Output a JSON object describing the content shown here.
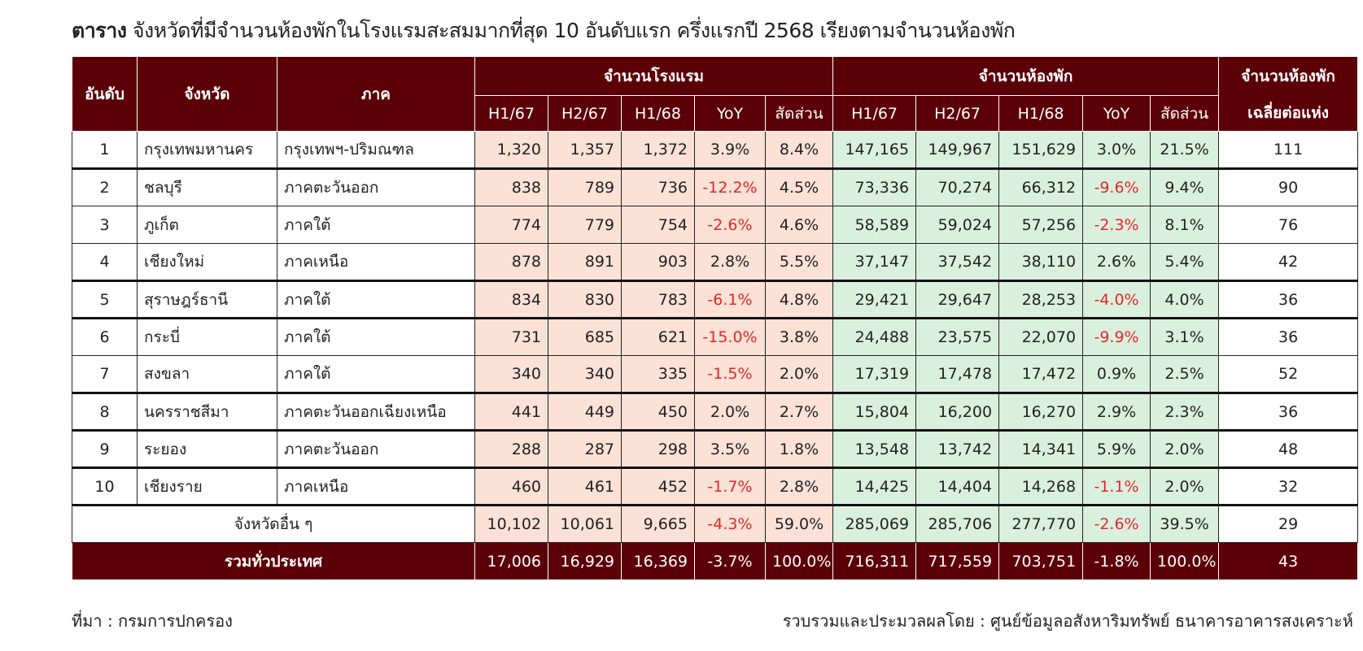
{
  "title": {
    "prefix": "ตาราง",
    "text": "จังหวัดที่มีจำนวนห้องพักในโรงแรมสะสมมากที่สุด 10 อันดับแรก ครึ่งแรกปี 2568 เรียงตามจำนวนห้องพัก"
  },
  "colors": {
    "header": "#5c0008",
    "hotel_cells": "#fbe1d6",
    "room_cells": "#daf0de",
    "negative": "#e02828"
  },
  "headers": {
    "rank": "อันดับ",
    "province": "จังหวัด",
    "region": "ภาค",
    "hotels_group": "จำนวนโรงแรม",
    "rooms_group": "จำนวนห้องพัก",
    "avg_line1": "จำนวนห้องพัก",
    "avg_line2": "เฉลี่ยต่อแห่ง",
    "sub": [
      "H1/67",
      "H2/67",
      "H1/68",
      "YoY",
      "สัดส่วน"
    ]
  },
  "rows": [
    {
      "rank": "1",
      "province": "กรุงเทพมหานคร",
      "region": "กรุงเทพฯ-ปริมณฑล",
      "hotels": [
        "1,320",
        "1,357",
        "1,372",
        "3.9%",
        "8.4%"
      ],
      "rooms": [
        "147,165",
        "149,967",
        "151,629",
        "3.0%",
        "21.5%"
      ],
      "avg": "111"
    },
    {
      "rank": "2",
      "province": "ชลบุรี",
      "region": "ภาคตะวันออก",
      "hotels": [
        "838",
        "789",
        "736",
        "-12.2%",
        "4.5%"
      ],
      "rooms": [
        "73,336",
        "70,274",
        "66,312",
        "-9.6%",
        "9.4%"
      ],
      "avg": "90"
    },
    {
      "rank": "3",
      "province": "ภูเก็ต",
      "region": "ภาคใต้",
      "hotels": [
        "774",
        "779",
        "754",
        "-2.6%",
        "4.6%"
      ],
      "rooms": [
        "58,589",
        "59,024",
        "57,256",
        "-2.3%",
        "8.1%"
      ],
      "avg": "76"
    },
    {
      "rank": "4",
      "province": "เชียงใหม่",
      "region": "ภาคเหนือ",
      "hotels": [
        "878",
        "891",
        "903",
        "2.8%",
        "5.5%"
      ],
      "rooms": [
        "37,147",
        "37,542",
        "38,110",
        "2.6%",
        "5.4%"
      ],
      "avg": "42"
    },
    {
      "rank": "5",
      "province": "สุราษฎร์ธานี",
      "region": "ภาคใต้",
      "hotels": [
        "834",
        "830",
        "783",
        "-6.1%",
        "4.8%"
      ],
      "rooms": [
        "29,421",
        "29,647",
        "28,253",
        "-4.0%",
        "4.0%"
      ],
      "avg": "36"
    },
    {
      "rank": "6",
      "province": "กระบี่",
      "region": "ภาคใต้",
      "hotels": [
        "731",
        "685",
        "621",
        "-15.0%",
        "3.8%"
      ],
      "rooms": [
        "24,488",
        "23,575",
        "22,070",
        "-9.9%",
        "3.1%"
      ],
      "avg": "36"
    },
    {
      "rank": "7",
      "province": "สงขลา",
      "region": "ภาคใต้",
      "hotels": [
        "340",
        "340",
        "335",
        "-1.5%",
        "2.0%"
      ],
      "rooms": [
        "17,319",
        "17,478",
        "17,472",
        "0.9%",
        "2.5%"
      ],
      "avg": "52"
    },
    {
      "rank": "8",
      "province": "นครราชสีมา",
      "region": "ภาคตะวันออกเฉียงเหนือ",
      "hotels": [
        "441",
        "449",
        "450",
        "2.0%",
        "2.7%"
      ],
      "rooms": [
        "15,804",
        "16,200",
        "16,270",
        "2.9%",
        "2.3%"
      ],
      "avg": "36"
    },
    {
      "rank": "9",
      "province": "ระยอง",
      "region": "ภาคตะวันออก",
      "hotels": [
        "288",
        "287",
        "298",
        "3.5%",
        "1.8%"
      ],
      "rooms": [
        "13,548",
        "13,742",
        "14,341",
        "5.9%",
        "2.0%"
      ],
      "avg": "48"
    },
    {
      "rank": "10",
      "province": "เชียงราย",
      "region": "ภาคเหนือ",
      "hotels": [
        "460",
        "461",
        "452",
        "-1.7%",
        "2.8%"
      ],
      "rooms": [
        "14,425",
        "14,404",
        "14,268",
        "-1.1%",
        "2.0%"
      ],
      "avg": "32"
    }
  ],
  "others": {
    "label": "จังหวัดอื่น ๆ",
    "hotels": [
      "10,102",
      "10,061",
      "9,665",
      "-4.3%",
      "59.0%"
    ],
    "rooms": [
      "285,069",
      "285,706",
      "277,770",
      "-2.6%",
      "39.5%"
    ],
    "avg": "29"
  },
  "total": {
    "label": "รวมทั่วประเทศ",
    "hotels": [
      "17,006",
      "16,929",
      "16,369",
      "-3.7%",
      "100.0%"
    ],
    "rooms": [
      "716,311",
      "717,559",
      "703,751",
      "-1.8%",
      "100.0%"
    ],
    "avg": "43"
  },
  "footer": {
    "source": "ที่มา : กรมการปกครอง",
    "credit": "รวบรวมและประมวลผลโดย  : ศูนย์ข้อมูลอสังหาริมทรัพย์  ธนาคารอาคารสงเคราะห์"
  }
}
